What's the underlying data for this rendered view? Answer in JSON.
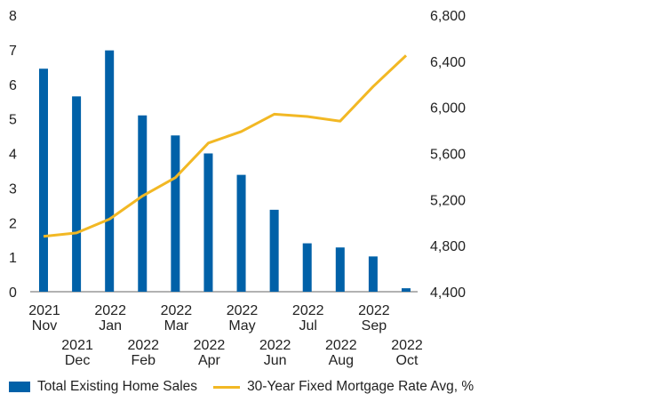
{
  "chart_data": {
    "type": "bar",
    "categories": [
      [
        "2021",
        "Nov"
      ],
      [
        "2021",
        "Dec"
      ],
      [
        "2022",
        "Jan"
      ],
      [
        "2022",
        "Feb"
      ],
      [
        "2022",
        "Mar"
      ],
      [
        "2022",
        "Apr"
      ],
      [
        "2022",
        "May"
      ],
      [
        "2022",
        "Jun"
      ],
      [
        "2022",
        "Jul"
      ],
      [
        "2022",
        "Aug"
      ],
      [
        "2022",
        "Sep"
      ],
      [
        "2022",
        "Oct"
      ]
    ],
    "series": [
      {
        "name": "Total Existing Home Sales",
        "type": "bar",
        "axis": "left",
        "color": "#0061A8",
        "values": [
          6.45,
          5.65,
          6.98,
          5.1,
          4.52,
          4.0,
          3.38,
          2.37,
          1.4,
          1.28,
          1.02,
          0.1
        ]
      },
      {
        "name": "30-Year Fixed Mortgage Rate Avg, %",
        "type": "line",
        "axis": "right",
        "color": "#F2B824",
        "values": [
          4880,
          4910,
          5030,
          5230,
          5390,
          5690,
          5790,
          5940,
          5920,
          5880,
          6180,
          6450
        ]
      }
    ],
    "y_left": {
      "min": 0,
      "max": 8,
      "ticks": [
        "0",
        "1",
        "2",
        "3",
        "4",
        "5",
        "6",
        "7",
        "8"
      ]
    },
    "y_right": {
      "min": 4400,
      "max": 6800,
      "ticks": [
        "4,400",
        "4,800",
        "5,200",
        "5,600",
        "6,000",
        "6,400",
        "6,800"
      ]
    },
    "grid": false,
    "legend_position": "bottom-left"
  }
}
